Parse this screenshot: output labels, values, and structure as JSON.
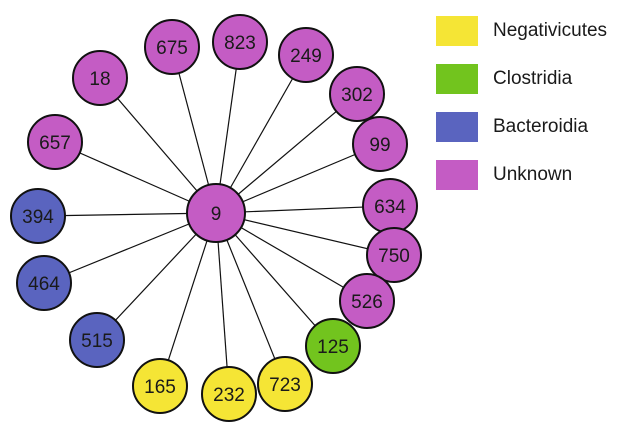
{
  "categories": [
    {
      "key": "negativicutes",
      "label": "Negativicutes",
      "color": "#f5e535"
    },
    {
      "key": "clostridia",
      "label": "Clostridia",
      "color": "#72c41e"
    },
    {
      "key": "bacteroidia",
      "label": "Bacteroidia",
      "color": "#5a64bf"
    },
    {
      "key": "unknown",
      "label": "Unknown",
      "color": "#c45cc4"
    }
  ],
  "center_node": {
    "id": "9",
    "category": "unknown"
  },
  "nodes": [
    {
      "id": "18",
      "category": "unknown"
    },
    {
      "id": "675",
      "category": "unknown"
    },
    {
      "id": "823",
      "category": "unknown"
    },
    {
      "id": "249",
      "category": "unknown"
    },
    {
      "id": "302",
      "category": "unknown"
    },
    {
      "id": "99",
      "category": "unknown"
    },
    {
      "id": "634",
      "category": "unknown"
    },
    {
      "id": "750",
      "category": "unknown"
    },
    {
      "id": "526",
      "category": "unknown"
    },
    {
      "id": "125",
      "category": "clostridia"
    },
    {
      "id": "723",
      "category": "negativicutes"
    },
    {
      "id": "232",
      "category": "negativicutes"
    },
    {
      "id": "165",
      "category": "negativicutes"
    },
    {
      "id": "515",
      "category": "bacteroidia"
    },
    {
      "id": "464",
      "category": "bacteroidia"
    },
    {
      "id": "394",
      "category": "bacteroidia"
    },
    {
      "id": "657",
      "category": "unknown"
    }
  ]
}
